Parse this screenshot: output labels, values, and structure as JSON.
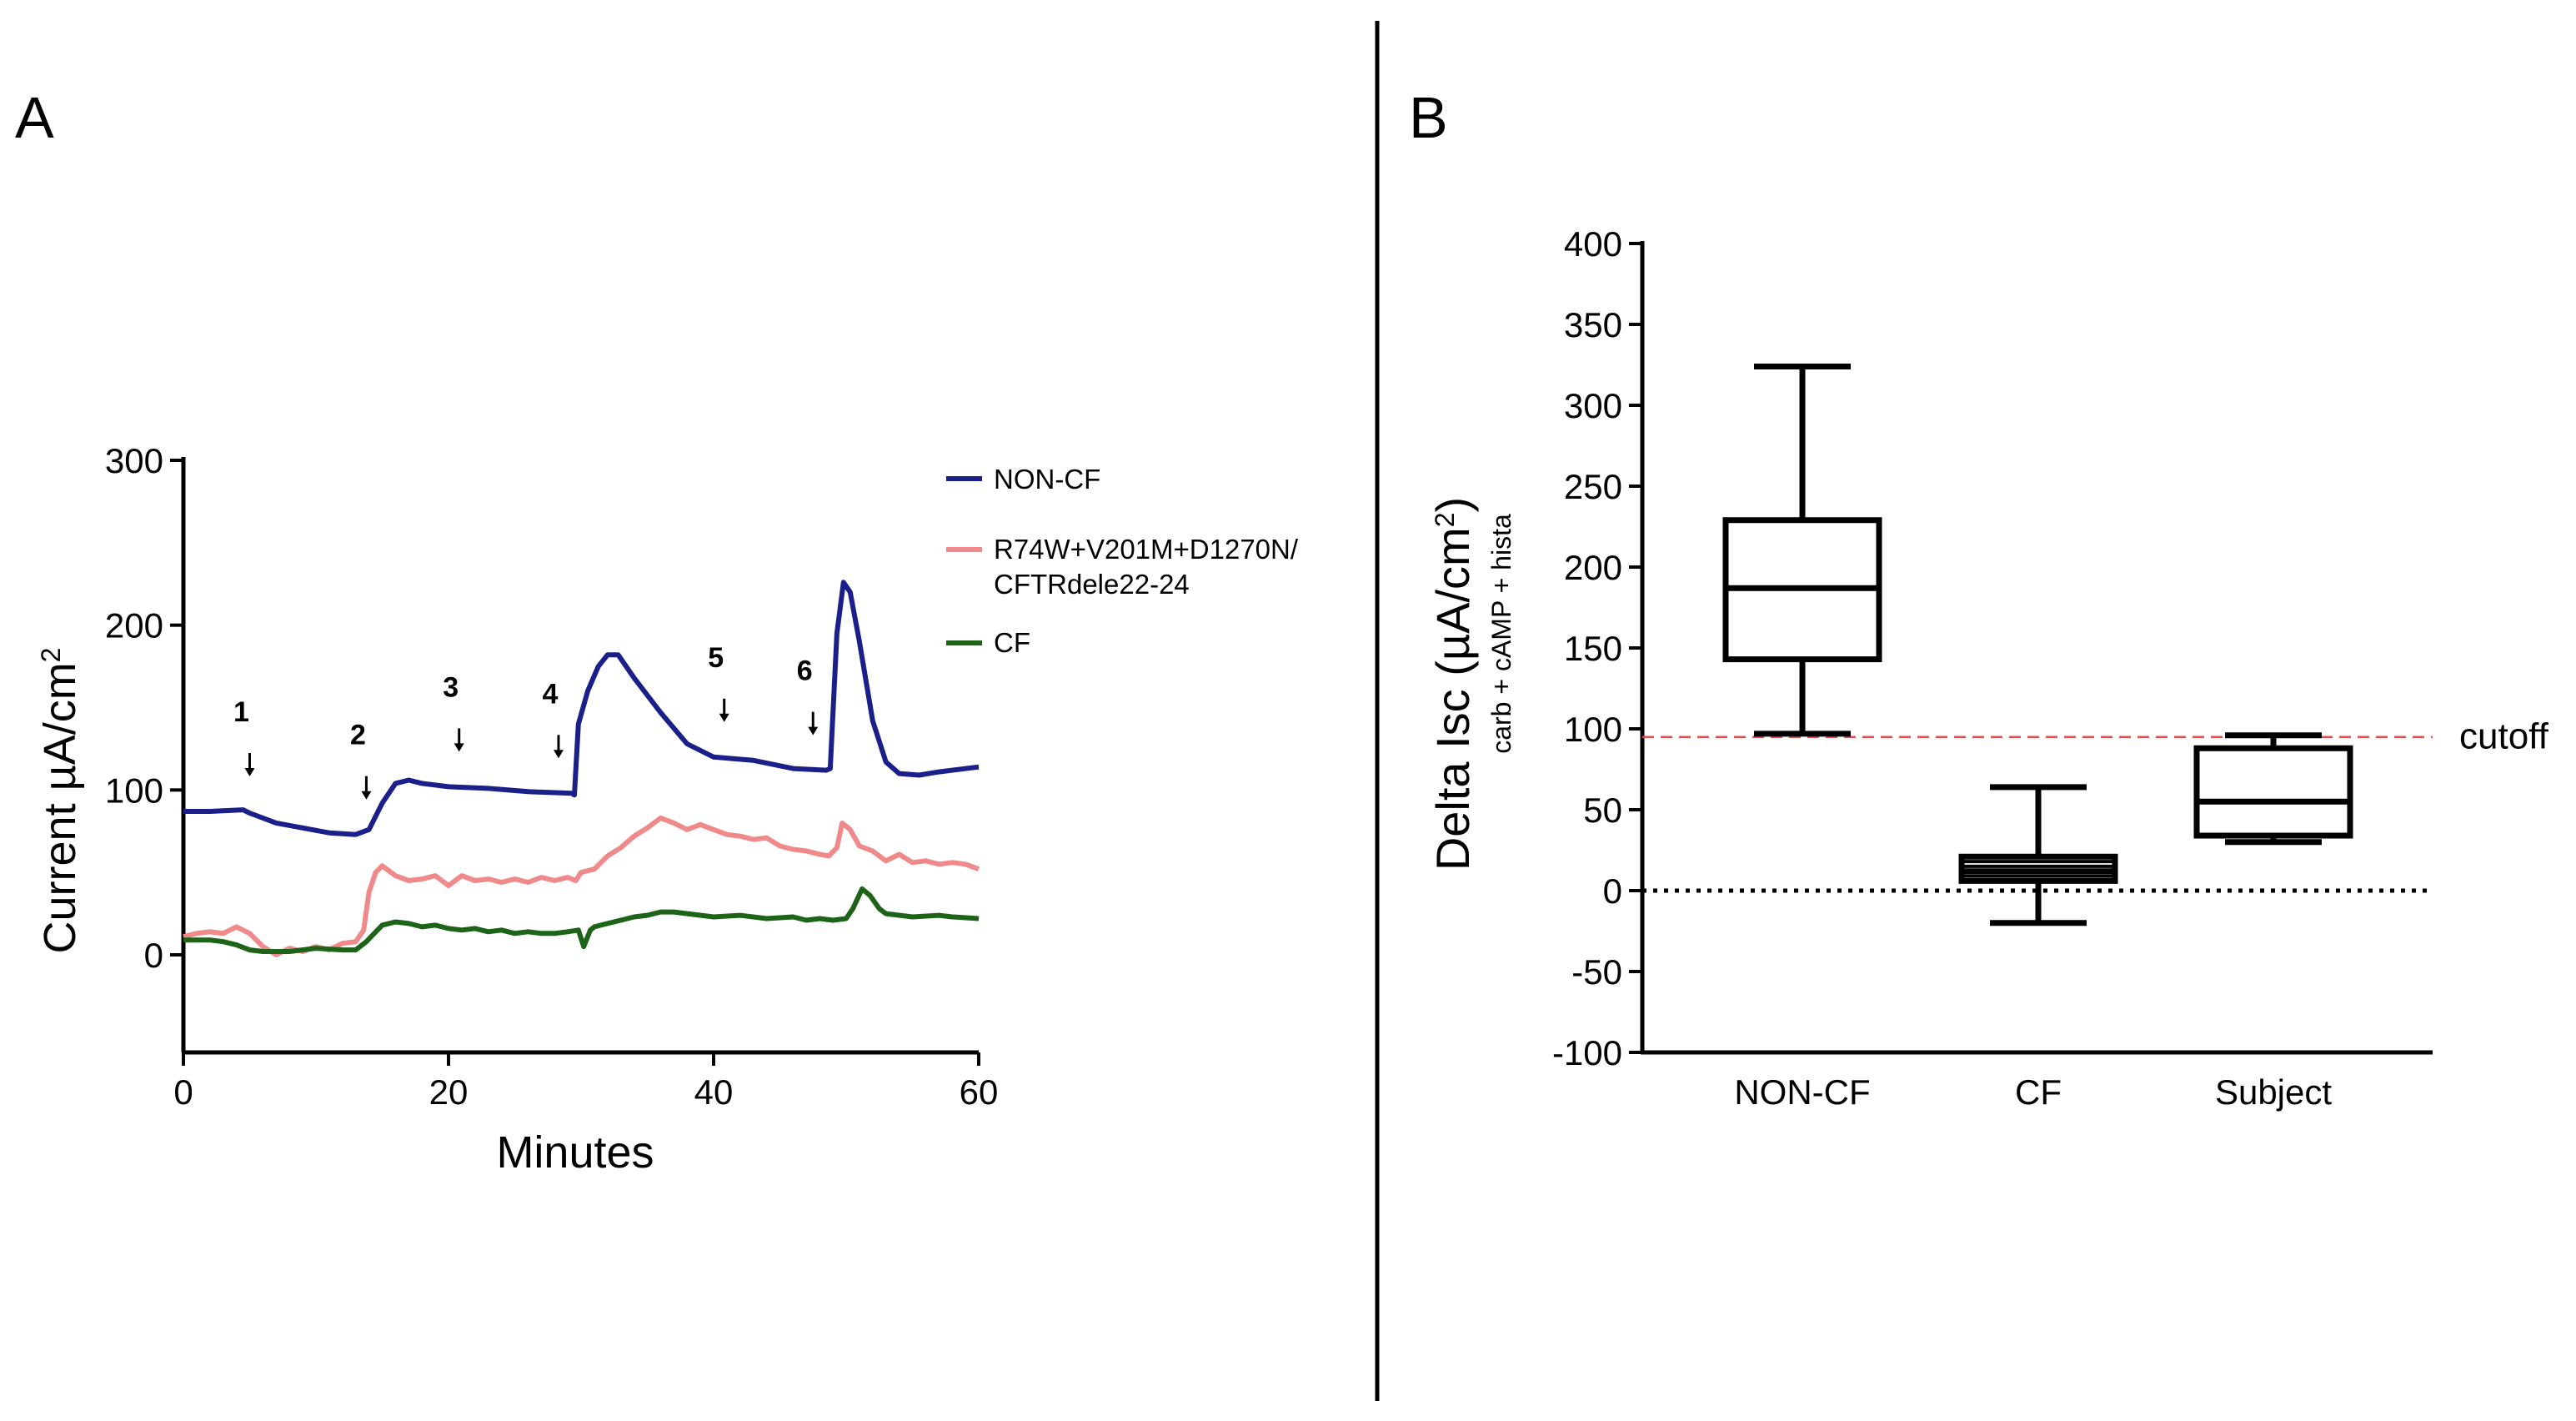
{
  "panel_a_label": "A",
  "panel_b_label": "B",
  "chart_data": [
    {
      "type": "line",
      "panel": "A",
      "title": "",
      "xlabel": "Minutes",
      "ylabel": "Current µA/cm",
      "ylabel_sup": "2",
      "xlim": [
        0,
        60
      ],
      "ylim": [
        -60,
        300
      ],
      "xticks": [
        0,
        20,
        40,
        60
      ],
      "yticks": [
        0,
        100,
        200,
        300
      ],
      "xtick_labels": [
        "0",
        "20",
        "40",
        "60"
      ],
      "ytick_labels": [
        "0",
        "100",
        "200",
        "300"
      ],
      "legend": {
        "placement": "right",
        "entries": [
          "NON-CF",
          "R74W+V201M+D1270N/",
          "CFTRdele22-24",
          "CF"
        ]
      },
      "series": [
        {
          "name": "NON-CF",
          "color": "#1a1f8a",
          "points": [
            [
              0,
              87
            ],
            [
              2,
              87
            ],
            [
              4.5,
              88
            ],
            [
              5,
              86
            ],
            [
              7,
              80
            ],
            [
              9,
              77
            ],
            [
              11,
              74
            ],
            [
              13,
              73
            ],
            [
              14,
              76
            ],
            [
              15,
              92
            ],
            [
              16,
              104
            ],
            [
              17,
              106
            ],
            [
              18,
              104
            ],
            [
              20,
              102
            ],
            [
              23,
              101
            ],
            [
              26,
              99
            ],
            [
              29.3,
              98
            ],
            [
              29.5,
              97
            ],
            [
              29.8,
              140
            ],
            [
              30.5,
              160
            ],
            [
              31.3,
              175
            ],
            [
              32,
              182
            ],
            [
              32.8,
              182
            ],
            [
              34,
              168
            ],
            [
              36,
              147
            ],
            [
              38,
              128
            ],
            [
              40,
              120
            ],
            [
              43,
              118
            ],
            [
              46,
              113
            ],
            [
              48.5,
              112
            ],
            [
              48.8,
              113
            ],
            [
              49.3,
              195
            ],
            [
              49.8,
              226
            ],
            [
              50.3,
              220
            ],
            [
              51,
              190
            ],
            [
              52,
              142
            ],
            [
              53,
              117
            ],
            [
              54,
              110
            ],
            [
              55.5,
              109
            ],
            [
              57,
              111
            ],
            [
              60,
              114
            ]
          ]
        },
        {
          "name": "R74W+V201M+D1270N/CFTRdele22-24",
          "color": "#f08a8a",
          "points": [
            [
              0,
              11
            ],
            [
              1,
              13
            ],
            [
              2,
              14
            ],
            [
              3,
              13
            ],
            [
              4,
              17
            ],
            [
              5,
              13
            ],
            [
              6,
              5
            ],
            [
              7,
              0
            ],
            [
              8,
              4
            ],
            [
              9,
              2
            ],
            [
              10,
              5
            ],
            [
              11,
              3
            ],
            [
              12,
              7
            ],
            [
              13,
              8
            ],
            [
              13.6,
              15
            ],
            [
              14,
              38
            ],
            [
              14.5,
              50
            ],
            [
              15,
              54
            ],
            [
              16,
              48
            ],
            [
              17,
              45
            ],
            [
              18,
              46
            ],
            [
              19,
              48
            ],
            [
              20,
              42
            ],
            [
              21,
              48
            ],
            [
              22,
              45
            ],
            [
              23,
              46
            ],
            [
              24,
              44
            ],
            [
              25,
              46
            ],
            [
              26,
              44
            ],
            [
              27,
              47
            ],
            [
              28,
              45
            ],
            [
              29,
              47
            ],
            [
              29.6,
              45
            ],
            [
              30,
              50
            ],
            [
              31,
              52
            ],
            [
              32,
              60
            ],
            [
              33,
              65
            ],
            [
              34,
              72
            ],
            [
              35,
              77
            ],
            [
              36,
              83
            ],
            [
              37,
              80
            ],
            [
              38,
              76
            ],
            [
              39,
              79
            ],
            [
              40,
              76
            ],
            [
              41,
              73
            ],
            [
              42,
              72
            ],
            [
              43,
              70
            ],
            [
              44,
              71
            ],
            [
              45,
              66
            ],
            [
              46,
              64
            ],
            [
              47,
              63
            ],
            [
              48,
              61
            ],
            [
              48.7,
              60
            ],
            [
              49.3,
              65
            ],
            [
              49.7,
              80
            ],
            [
              50.3,
              76
            ],
            [
              51,
              66
            ],
            [
              52,
              63
            ],
            [
              53,
              57
            ],
            [
              54,
              61
            ],
            [
              55,
              56
            ],
            [
              56,
              57
            ],
            [
              57,
              55
            ],
            [
              58,
              56
            ],
            [
              59,
              55
            ],
            [
              60,
              52
            ]
          ]
        },
        {
          "name": "CF",
          "color": "#1d6318",
          "points": [
            [
              0,
              9
            ],
            [
              2,
              9
            ],
            [
              3,
              8
            ],
            [
              4,
              6
            ],
            [
              5,
              3
            ],
            [
              6,
              2
            ],
            [
              7,
              2
            ],
            [
              8,
              2
            ],
            [
              10,
              4
            ],
            [
              12,
              3
            ],
            [
              13,
              3
            ],
            [
              13.8,
              8
            ],
            [
              15,
              18
            ],
            [
              16,
              20
            ],
            [
              17,
              19
            ],
            [
              18,
              17
            ],
            [
              19,
              18
            ],
            [
              20,
              16
            ],
            [
              21,
              15
            ],
            [
              22,
              16
            ],
            [
              23,
              14
            ],
            [
              24,
              15
            ],
            [
              25,
              13
            ],
            [
              26,
              14
            ],
            [
              27,
              13
            ],
            [
              28,
              13
            ],
            [
              29,
              14
            ],
            [
              29.8,
              15
            ],
            [
              30.2,
              5
            ],
            [
              30.7,
              15
            ],
            [
              31,
              17
            ],
            [
              32,
              19
            ],
            [
              33,
              21
            ],
            [
              34,
              23
            ],
            [
              35,
              24
            ],
            [
              36,
              26
            ],
            [
              37,
              26
            ],
            [
              38,
              25
            ],
            [
              40,
              23
            ],
            [
              42,
              24
            ],
            [
              44,
              22
            ],
            [
              46,
              23
            ],
            [
              47,
              21
            ],
            [
              48,
              22
            ],
            [
              49,
              21
            ],
            [
              50,
              22
            ],
            [
              50.5,
              28
            ],
            [
              51.2,
              40
            ],
            [
              51.8,
              36
            ],
            [
              52.5,
              28
            ],
            [
              53,
              25
            ],
            [
              55,
              23
            ],
            [
              57,
              24
            ],
            [
              58,
              23
            ],
            [
              60,
              22
            ]
          ]
        }
      ],
      "annotations": [
        {
          "label": "1",
          "x": 5,
          "y_value": 87
        },
        {
          "label": "2",
          "x": 13.8,
          "y_value": 73
        },
        {
          "label": "3",
          "x": 20.8,
          "y_value": 102
        },
        {
          "label": "4",
          "x": 28.3,
          "y_value": 98
        },
        {
          "label": "5",
          "x": 40.8,
          "y_value": 120
        },
        {
          "label": "6",
          "x": 47.5,
          "y_value": 112
        }
      ]
    },
    {
      "type": "box",
      "panel": "B",
      "title": "",
      "xlabel": "",
      "ylabel": "Delta Isc (µA/cm",
      "ylabel_sup": "2",
      "ylabel_close": ")",
      "ylabel_sub": "carb + cAMP + hista",
      "ylim": [
        -100,
        400
      ],
      "yticks": [
        -100,
        -50,
        0,
        50,
        100,
        150,
        200,
        250,
        300,
        350,
        400
      ],
      "ytick_labels": [
        "-100",
        "-50",
        "0",
        "50",
        "100",
        "150",
        "200",
        "250",
        "300",
        "350",
        "400"
      ],
      "categories": [
        "NON-CF",
        "CF",
        "Subject"
      ],
      "boxes": [
        {
          "name": "NON-CF",
          "min": 97,
          "q1": 143,
          "median": 187,
          "q3": 229,
          "max": 324
        },
        {
          "name": "CF",
          "min": -20,
          "q1": 6,
          "median": 12,
          "q3": 21,
          "max": 64,
          "inner_lines": [
            9,
            15,
            18
          ]
        },
        {
          "name": "Subject",
          "min": 30,
          "q1": 34,
          "median": 55,
          "q3": 88,
          "max": 96
        }
      ],
      "reference_lines": [
        {
          "name": "cutoff",
          "value": 95,
          "color": "#e05050",
          "style": "dashed",
          "label": "cutoff"
        },
        {
          "name": "zero",
          "value": 0,
          "color": "#000000",
          "style": "dotted"
        }
      ]
    }
  ]
}
